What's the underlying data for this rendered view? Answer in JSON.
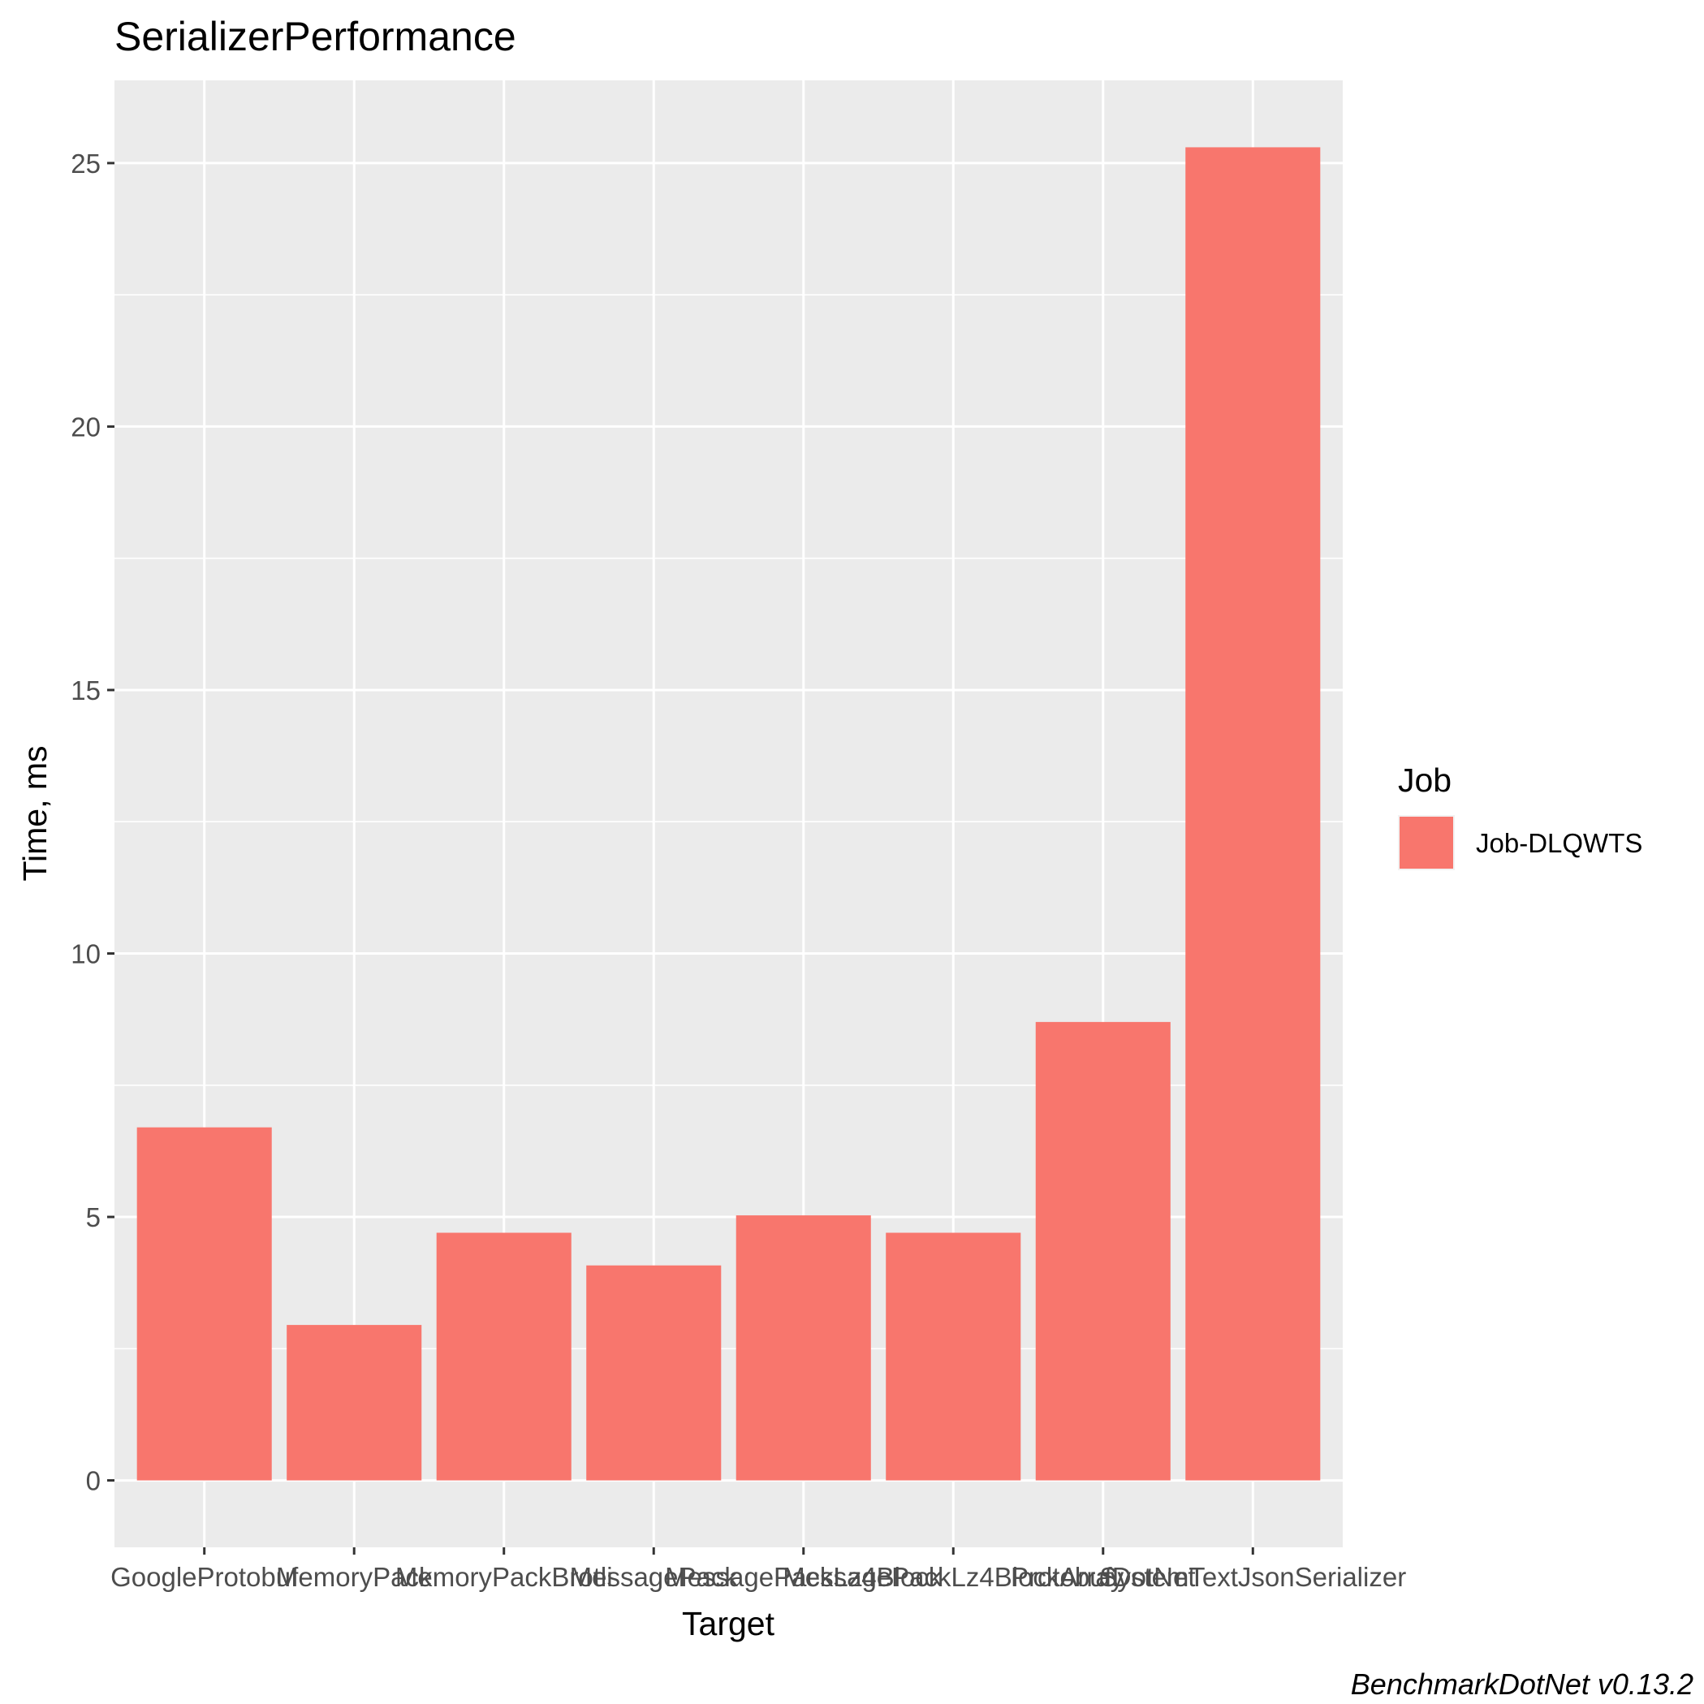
{
  "chart_data": {
    "type": "bar",
    "title": "SerializerPerformance",
    "xlabel": "Target",
    "ylabel": "Time, ms",
    "categories": [
      "GoogleProtobuf",
      "MemoryPack",
      "MemoryPackBrotli",
      "MessagePack",
      "MessagePackLz4Block",
      "MessagePackLz4BlockArray",
      "ProtobufDotNet",
      "SystemTextJsonSerializer"
    ],
    "series": [
      {
        "name": "Job-DLQWTS",
        "color": "#f8766d",
        "values": [
          6.7,
          2.95,
          4.7,
          4.08,
          5.03,
          4.7,
          8.7,
          25.3
        ]
      }
    ],
    "yticks": [
      0,
      5,
      10,
      15,
      20,
      25
    ],
    "ylim": [
      -1.27,
      26.57
    ],
    "grid": true,
    "legend": {
      "title": "Job",
      "position": "right"
    },
    "caption": "BenchmarkDotNet v0.13.2"
  }
}
